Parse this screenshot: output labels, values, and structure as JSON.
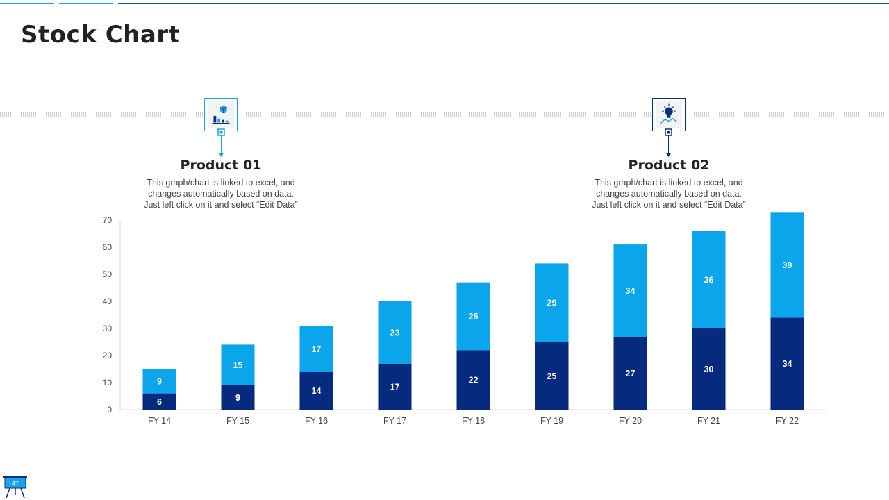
{
  "page": {
    "title": "Stock Chart",
    "slide_number": "47"
  },
  "products": [
    {
      "name": "Product 01",
      "icon": "analytics-cube-icon",
      "description_lines": [
        "This graph/chart is linked to excel, and",
        "changes automatically based on data.",
        "Just left click on it and select “Edit Data”"
      ]
    },
    {
      "name": "Product 02",
      "icon": "lightbulb-idea-icon",
      "description_lines": [
        "This graph/chart is linked to excel, and",
        "changes automatically based on data.",
        "Just left click on it and select “Edit Data”"
      ]
    }
  ],
  "colors": {
    "accent": "#1aa3e8",
    "dark": "#0b2f7a",
    "series_bottom": "#062a7e",
    "series_top": "#0aa5ea",
    "axis_text": "#444444",
    "grid": "#d9d9d9"
  },
  "chart_data": {
    "type": "bar",
    "stacked": true,
    "categories": [
      "FY 14",
      "FY 15",
      "FY 16",
      "FY 17",
      "FY 18",
      "FY 19",
      "FY 20",
      "FY 21",
      "FY 22"
    ],
    "series": [
      {
        "values": [
          6,
          9,
          14,
          17,
          22,
          25,
          27,
          30,
          34
        ]
      },
      {
        "values": [
          9,
          15,
          17,
          23,
          25,
          29,
          34,
          36,
          39
        ]
      }
    ],
    "ylim": [
      0,
      70
    ],
    "yticks": [
      0,
      10,
      20,
      30,
      40,
      50,
      60,
      70
    ],
    "title": "",
    "xlabel": "",
    "ylabel": "",
    "grid": false,
    "data_labels": true
  }
}
